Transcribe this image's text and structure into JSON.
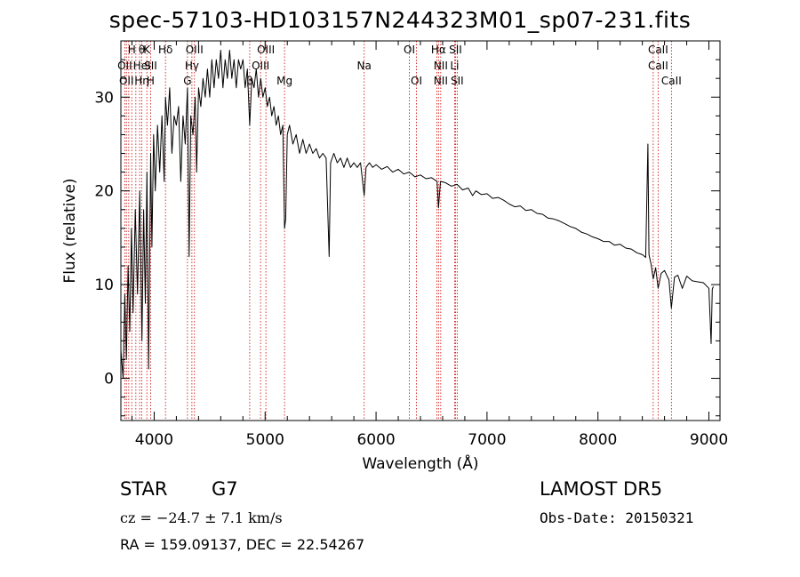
{
  "chart_data": {
    "type": "line",
    "title": "spec-57103-HD103157N244323M01_sp07-231.fits",
    "xlabel": "Wavelength (Å)",
    "ylabel": "Flux (relative)",
    "xlim": [
      3700,
      9100
    ],
    "ylim": [
      -4.5,
      36
    ],
    "xticks": [
      4000,
      5000,
      6000,
      7000,
      8000,
      9000
    ],
    "yticks": [
      0,
      10,
      20,
      30
    ],
    "grid": false,
    "series": [
      {
        "points": [
          [
            3700,
            3
          ],
          [
            3720,
            0
          ],
          [
            3735,
            9
          ],
          [
            3750,
            2
          ],
          [
            3765,
            12
          ],
          [
            3780,
            5
          ],
          [
            3795,
            16
          ],
          [
            3810,
            7
          ],
          [
            3830,
            18
          ],
          [
            3850,
            9
          ],
          [
            3870,
            20
          ],
          [
            3890,
            4
          ],
          [
            3905,
            18
          ],
          [
            3920,
            8
          ],
          [
            3935,
            22
          ],
          [
            3950,
            1
          ],
          [
            3968,
            24
          ],
          [
            3980,
            14
          ],
          [
            3995,
            26
          ],
          [
            4010,
            20
          ],
          [
            4030,
            27
          ],
          [
            4050,
            22
          ],
          [
            4070,
            28
          ],
          [
            4090,
            21
          ],
          [
            4102,
            30
          ],
          [
            4120,
            27
          ],
          [
            4140,
            31
          ],
          [
            4160,
            24
          ],
          [
            4180,
            28
          ],
          [
            4200,
            27
          ],
          [
            4220,
            29
          ],
          [
            4240,
            21
          ],
          [
            4260,
            28
          ],
          [
            4280,
            25
          ],
          [
            4300,
            31
          ],
          [
            4315,
            13
          ],
          [
            4330,
            28
          ],
          [
            4350,
            26
          ],
          [
            4370,
            30
          ],
          [
            4383,
            22
          ],
          [
            4400,
            31
          ],
          [
            4420,
            29
          ],
          [
            4440,
            32
          ],
          [
            4460,
            30
          ],
          [
            4480,
            33
          ],
          [
            4500,
            30
          ],
          [
            4520,
            34
          ],
          [
            4540,
            31
          ],
          [
            4560,
            34
          ],
          [
            4580,
            32
          ],
          [
            4600,
            35
          ],
          [
            4620,
            31
          ],
          [
            4640,
            34
          ],
          [
            4660,
            32
          ],
          [
            4680,
            35
          ],
          [
            4700,
            32
          ],
          [
            4720,
            34
          ],
          [
            4740,
            31
          ],
          [
            4760,
            34
          ],
          [
            4780,
            33
          ],
          [
            4800,
            34
          ],
          [
            4820,
            31
          ],
          [
            4840,
            33
          ],
          [
            4861,
            27
          ],
          [
            4880,
            32
          ],
          [
            4900,
            31
          ],
          [
            4920,
            33
          ],
          [
            4940,
            30
          ],
          [
            4960,
            32
          ],
          [
            4980,
            30
          ],
          [
            5000,
            31
          ],
          [
            5020,
            29
          ],
          [
            5040,
            30
          ],
          [
            5060,
            28
          ],
          [
            5080,
            29
          ],
          [
            5100,
            27
          ],
          [
            5120,
            28
          ],
          [
            5140,
            26
          ],
          [
            5160,
            27
          ],
          [
            5175,
            16
          ],
          [
            5185,
            17
          ],
          [
            5200,
            26
          ],
          [
            5220,
            27
          ],
          [
            5250,
            25
          ],
          [
            5280,
            26
          ],
          [
            5310,
            24
          ],
          [
            5340,
            25.5
          ],
          [
            5370,
            24
          ],
          [
            5400,
            25
          ],
          [
            5430,
            24
          ],
          [
            5460,
            24.5
          ],
          [
            5490,
            23.5
          ],
          [
            5520,
            24
          ],
          [
            5550,
            23.5
          ],
          [
            5577,
            13
          ],
          [
            5590,
            23
          ],
          [
            5620,
            24
          ],
          [
            5650,
            23
          ],
          [
            5680,
            23.5
          ],
          [
            5710,
            22.5
          ],
          [
            5740,
            23.5
          ],
          [
            5770,
            22.5
          ],
          [
            5800,
            23
          ],
          [
            5830,
            22.5
          ],
          [
            5860,
            23
          ],
          [
            5893,
            19.5
          ],
          [
            5910,
            22.5
          ],
          [
            5940,
            23
          ],
          [
            5970,
            22.5
          ],
          [
            6000,
            22.8
          ],
          [
            6050,
            22.3
          ],
          [
            6100,
            22.6
          ],
          [
            6150,
            22
          ],
          [
            6200,
            22.3
          ],
          [
            6250,
            21.8
          ],
          [
            6300,
            22
          ],
          [
            6350,
            21.5
          ],
          [
            6400,
            21.7
          ],
          [
            6450,
            21.3
          ],
          [
            6500,
            21.4
          ],
          [
            6550,
            21
          ],
          [
            6563,
            18.2
          ],
          [
            6580,
            21
          ],
          [
            6620,
            20.9
          ],
          [
            6680,
            20.5
          ],
          [
            6730,
            20.7
          ],
          [
            6780,
            20.1
          ],
          [
            6830,
            20.3
          ],
          [
            6870,
            19.5
          ],
          [
            6900,
            20
          ],
          [
            6950,
            19.6
          ],
          [
            7000,
            19.7
          ],
          [
            7050,
            19.2
          ],
          [
            7100,
            19.3
          ],
          [
            7150,
            19.0
          ],
          [
            7200,
            18.6
          ],
          [
            7250,
            18.3
          ],
          [
            7300,
            18.4
          ],
          [
            7350,
            17.9
          ],
          [
            7400,
            18
          ],
          [
            7450,
            17.6
          ],
          [
            7500,
            17.5
          ],
          [
            7550,
            17.1
          ],
          [
            7600,
            17
          ],
          [
            7650,
            16.8
          ],
          [
            7700,
            16.5
          ],
          [
            7750,
            16.2
          ],
          [
            7800,
            16
          ],
          [
            7850,
            15.6
          ],
          [
            7900,
            15.4
          ],
          [
            7950,
            15.1
          ],
          [
            8000,
            14.9
          ],
          [
            8050,
            14.6
          ],
          [
            8100,
            14.6
          ],
          [
            8150,
            14.2
          ],
          [
            8200,
            14.3
          ],
          [
            8250,
            13.9
          ],
          [
            8300,
            13.8
          ],
          [
            8350,
            13.4
          ],
          [
            8400,
            13.2
          ],
          [
            8430,
            12.9
          ],
          [
            8450,
            25
          ],
          [
            8460,
            13.2
          ],
          [
            8480,
            12.1
          ],
          [
            8498,
            10.6
          ],
          [
            8520,
            11.8
          ],
          [
            8542,
            9.6
          ],
          [
            8570,
            11.2
          ],
          [
            8600,
            11.5
          ],
          [
            8640,
            10.5
          ],
          [
            8662,
            7.5
          ],
          [
            8690,
            10.8
          ],
          [
            8720,
            11
          ],
          [
            8760,
            9.6
          ],
          [
            8800,
            10.9
          ],
          [
            8850,
            10.4
          ],
          [
            8900,
            10.3
          ],
          [
            8950,
            10.2
          ],
          [
            9000,
            9.6
          ],
          [
            9020,
            3.7
          ],
          [
            9030,
            9.5
          ],
          [
            9040,
            9.8
          ]
        ]
      }
    ],
    "lines": [
      {
        "x": 3735,
        "labels": [
          "",
          "OII",
          ""
        ]
      },
      {
        "x": 3750,
        "labels": [
          "",
          "",
          "OII"
        ]
      },
      {
        "x": 3771,
        "labels": [
          "",
          "",
          ""
        ]
      },
      {
        "x": 3798,
        "labels": [
          "H",
          "",
          ""
        ]
      },
      {
        "x": 3835,
        "labels": [
          "",
          "",
          ""
        ]
      },
      {
        "x": 3869,
        "labels": [
          "",
          "",
          ""
        ]
      },
      {
        "x": 3889,
        "labels": [
          "θ",
          "HeI",
          "Hη"
        ]
      },
      {
        "x": 3934,
        "labels": [
          "K",
          "",
          ""
        ]
      },
      {
        "x": 3968,
        "labels": [
          "",
          "SII",
          "H"
        ]
      },
      {
        "x": 4102,
        "labels": [
          "Hδ",
          "",
          ""
        ]
      },
      {
        "x": 4300,
        "labels": [
          "",
          "",
          "G"
        ]
      },
      {
        "x": 4340,
        "labels": [
          "",
          "Hγ",
          ""
        ]
      },
      {
        "x": 4363,
        "labels": [
          "OIII",
          "",
          ""
        ]
      },
      {
        "x": 4861,
        "labels": [
          "",
          "",
          "β"
        ]
      },
      {
        "x": 4959,
        "labels": [
          "",
          "OIII",
          ""
        ]
      },
      {
        "x": 5007,
        "labels": [
          "OIII",
          "",
          ""
        ]
      },
      {
        "x": 5175,
        "labels": [
          "",
          "",
          "Mg"
        ]
      },
      {
        "x": 5893,
        "labels": [
          "",
          "Na",
          ""
        ]
      },
      {
        "x": 6300,
        "labels": [
          "OI",
          "",
          ""
        ]
      },
      {
        "x": 6364,
        "labels": [
          "",
          "",
          "OI"
        ]
      },
      {
        "x": 6548,
        "labels": [
          "",
          "",
          ""
        ]
      },
      {
        "x": 6563,
        "labels": [
          "Hα",
          "",
          ""
        ]
      },
      {
        "x": 6583,
        "labels": [
          "",
          "NII",
          "NII"
        ]
      },
      {
        "x": 6708,
        "labels": [
          "",
          "Li",
          ""
        ]
      },
      {
        "x": 6716,
        "labels": [
          "SII",
          "",
          ""
        ]
      },
      {
        "x": 6731,
        "labels": [
          "",
          "",
          "SII"
        ]
      },
      {
        "x": 8498,
        "labels": [
          "",
          "",
          ""
        ]
      },
      {
        "x": 8542,
        "labels": [
          "CaII",
          "CaII",
          ""
        ]
      },
      {
        "x": 8662,
        "labels": [
          "",
          "",
          "CaII"
        ]
      }
    ],
    "colors": {
      "axes": "#000000",
      "data": "#000000",
      "line_marker": "#cc0000"
    }
  },
  "info": {
    "object_class": "STAR",
    "subclass": "G7",
    "survey": "LAMOST DR5",
    "redshift": "cz = −24.7 ± 7.1 km/s",
    "obs_date": "Obs-Date: 20150321",
    "coords": "RA = 159.09137, DEC =  22.54267"
  }
}
